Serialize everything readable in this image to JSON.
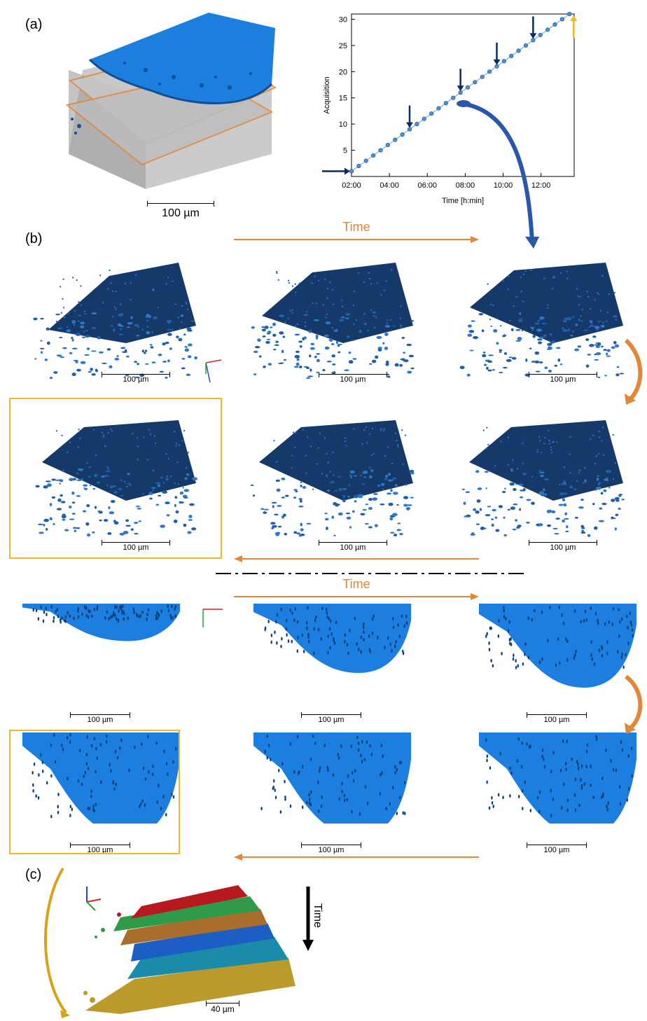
{
  "labels": {
    "a": "(a)",
    "b": "(b)",
    "c": "(c)"
  },
  "time_label": "Time",
  "scale_100": "100 µm",
  "scale_40": "40 µm",
  "colors": {
    "blue_dark": "#12355e",
    "blue_bright": "#1c7fe0",
    "orange": "#e2873a",
    "gold": "#f3b72a",
    "navy": "#0d2b5e"
  },
  "chart_data": {
    "type": "scatter",
    "xlabel": "Time [h:min]",
    "ylabel": "Acquisition",
    "x_ticks": [
      "02:00",
      "04:00",
      "06:00",
      "08:00",
      "10:00",
      "12:00"
    ],
    "y_ticks": [
      5,
      10,
      15,
      20,
      25,
      30
    ],
    "xlim": [
      "02:00",
      "13:45"
    ],
    "ylim": [
      0,
      31
    ],
    "x_hours_start": 2.0,
    "x_hours_end": 13.5,
    "n_points": 31,
    "highlighted_acquisitions": [
      1,
      9,
      16,
      21,
      26
    ],
    "final_acquisition": 31
  }
}
